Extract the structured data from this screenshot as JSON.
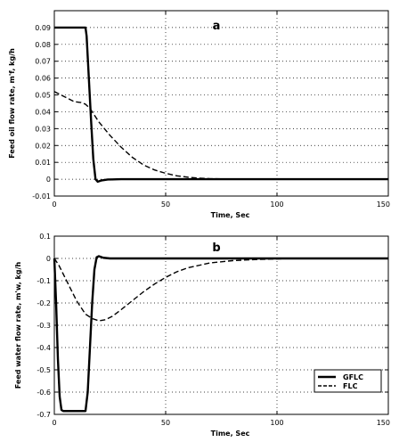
{
  "chart_data": [
    {
      "type": "line",
      "panel_label": "a",
      "xlabel": "Time, Sec",
      "ylabel": "Feed oil flow rate, m'f, kg/h",
      "xlim": [
        0,
        150
      ],
      "ylim": [
        -0.01,
        0.1
      ],
      "xticks": [
        "0",
        "50",
        "100",
        "150"
      ],
      "yticks": [
        "-0.01",
        "0",
        "0.01",
        "0.02",
        "0.03",
        "0.04",
        "0.05",
        "0.06",
        "0.07",
        "0.08",
        "0.09"
      ],
      "grid": true,
      "series": [
        {
          "name": "GFLC",
          "style": "solid",
          "points": [
            [
              0,
              0.09
            ],
            [
              14,
              0.09
            ],
            [
              14.5,
              0.085
            ],
            [
              15.5,
              0.06
            ],
            [
              16.5,
              0.035
            ],
            [
              17.5,
              0.012
            ],
            [
              18.5,
              0.0
            ],
            [
              19.5,
              -0.0015
            ],
            [
              21,
              -0.0008
            ],
            [
              24,
              -0.0002
            ],
            [
              30,
              0
            ],
            [
              150,
              0
            ]
          ]
        },
        {
          "name": "FLC",
          "style": "dashed",
          "points": [
            [
              0,
              0.052
            ],
            [
              3,
              0.05
            ],
            [
              6,
              0.048
            ],
            [
              9,
              0.046
            ],
            [
              12,
              0.0455
            ],
            [
              14,
              0.0445
            ],
            [
              16,
              0.042
            ],
            [
              18,
              0.038
            ],
            [
              20,
              0.034
            ],
            [
              25,
              0.026
            ],
            [
              30,
              0.019
            ],
            [
              35,
              0.013
            ],
            [
              40,
              0.0085
            ],
            [
              45,
              0.0055
            ],
            [
              50,
              0.0035
            ],
            [
              55,
              0.002
            ],
            [
              60,
              0.0012
            ],
            [
              65,
              0.0006
            ],
            [
              70,
              0.0003
            ],
            [
              80,
              0.0001
            ],
            [
              90,
              0
            ],
            [
              150,
              0
            ]
          ]
        }
      ]
    },
    {
      "type": "line",
      "panel_label": "b",
      "xlabel": "Time, Sec",
      "ylabel": "Feed water flow rate, m'w, kg/h",
      "xlim": [
        0,
        150
      ],
      "ylim": [
        -0.7,
        0.1
      ],
      "xticks": [
        "0",
        "50",
        "100",
        "150"
      ],
      "yticks": [
        "-0.7",
        "-0.6",
        "-0.5",
        "-0.4",
        "-0.3",
        "-0.2",
        "-0.1",
        "0",
        "0.1"
      ],
      "grid": true,
      "legend": {
        "position": "bottom-right"
      },
      "series": [
        {
          "name": "GFLC",
          "style": "solid",
          "points": [
            [
              0,
              0
            ],
            [
              0.8,
              -0.2
            ],
            [
              1.6,
              -0.45
            ],
            [
              2.4,
              -0.62
            ],
            [
              3.2,
              -0.68
            ],
            [
              4,
              -0.685
            ],
            [
              14,
              -0.685
            ],
            [
              15,
              -0.6
            ],
            [
              16,
              -0.4
            ],
            [
              17,
              -0.2
            ],
            [
              18,
              -0.05
            ],
            [
              19,
              0.005
            ],
            [
              20,
              0.01
            ],
            [
              22,
              0.003
            ],
            [
              25,
              0
            ],
            [
              150,
              0
            ]
          ]
        },
        {
          "name": "FLC",
          "style": "dashed",
          "points": [
            [
              0,
              0
            ],
            [
              2,
              -0.03
            ],
            [
              4,
              -0.07
            ],
            [
              6,
              -0.11
            ],
            [
              8,
              -0.15
            ],
            [
              10,
              -0.19
            ],
            [
              12,
              -0.22
            ],
            [
              14,
              -0.25
            ],
            [
              17,
              -0.27
            ],
            [
              20,
              -0.28
            ],
            [
              23,
              -0.275
            ],
            [
              26,
              -0.26
            ],
            [
              30,
              -0.23
            ],
            [
              35,
              -0.19
            ],
            [
              40,
              -0.15
            ],
            [
              45,
              -0.115
            ],
            [
              50,
              -0.085
            ],
            [
              55,
              -0.06
            ],
            [
              60,
              -0.042
            ],
            [
              70,
              -0.02
            ],
            [
              80,
              -0.01
            ],
            [
              90,
              -0.005
            ],
            [
              100,
              -0.002
            ],
            [
              110,
              0
            ],
            [
              150,
              0
            ]
          ]
        }
      ]
    }
  ]
}
